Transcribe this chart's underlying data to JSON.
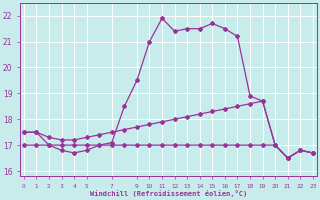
{
  "xlabel": "Windchill (Refroidissement éolien,°C)",
  "bg_color": "#c8ecec",
  "grid_color": "#ffffff",
  "line_color": "#993399",
  "hours": [
    0,
    1,
    2,
    3,
    4,
    5,
    6,
    7,
    8,
    9,
    10,
    11,
    12,
    13,
    14,
    15,
    16,
    17,
    18,
    19,
    20,
    21,
    22,
    23
  ],
  "temp": [
    17.5,
    17.5,
    17.0,
    16.8,
    16.7,
    16.8,
    17.0,
    17.1,
    18.5,
    19.5,
    21.0,
    21.9,
    21.4,
    21.5,
    21.5,
    21.7,
    21.5,
    21.2,
    18.9,
    18.7,
    17.0,
    16.5,
    16.8,
    16.7
  ],
  "windchill_slope": [
    17.5,
    17.5,
    17.3,
    17.2,
    17.2,
    17.3,
    17.4,
    17.5,
    17.6,
    17.7,
    17.8,
    17.9,
    18.0,
    18.1,
    18.2,
    18.3,
    18.4,
    18.5,
    18.6,
    18.7,
    17.0,
    16.5,
    16.8,
    16.7
  ],
  "flat_line": [
    17.0,
    17.0,
    17.0,
    17.0,
    17.0,
    17.0,
    17.0,
    17.0,
    17.0,
    17.0,
    17.0,
    17.0,
    17.0,
    17.0,
    17.0,
    17.0,
    17.0,
    17.0,
    17.0,
    17.0,
    17.0,
    16.5,
    16.8,
    16.7
  ],
  "ylim": [
    15.8,
    22.5
  ],
  "yticks": [
    16,
    17,
    18,
    19,
    20,
    21,
    22
  ],
  "xlim": [
    -0.3,
    23.3
  ],
  "xticks": [
    0,
    1,
    2,
    3,
    4,
    5,
    7,
    9,
    10,
    11,
    12,
    13,
    14,
    15,
    16,
    17,
    18,
    19,
    20,
    21,
    22,
    23
  ]
}
